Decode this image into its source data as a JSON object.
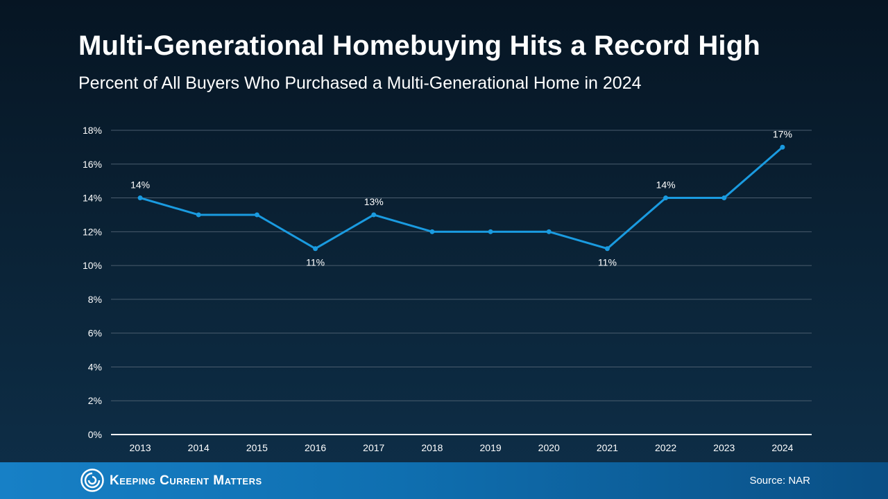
{
  "chart_data": {
    "type": "line",
    "title": "Multi-Generational Homebuying Hits a Record High",
    "subtitle": "Percent of All Buyers Who Purchased a Multi-Generational Home in 2024",
    "x": [
      "2013",
      "2014",
      "2015",
      "2016",
      "2017",
      "2018",
      "2019",
      "2020",
      "2021",
      "2022",
      "2023",
      "2024"
    ],
    "series": [
      {
        "values": [
          14,
          13,
          13,
          11,
          13,
          12,
          12,
          12,
          11,
          14,
          14,
          17
        ]
      }
    ],
    "data_labels": [
      {
        "x": "2013",
        "text": "14%"
      },
      {
        "x": "2016",
        "text": "11%"
      },
      {
        "x": "2017",
        "text": "13%"
      },
      {
        "x": "2021",
        "text": "11%"
      },
      {
        "x": "2022",
        "text": "14%"
      },
      {
        "x": "2024",
        "text": "17%"
      }
    ],
    "y_ticks": [
      "0%",
      "2%",
      "4%",
      "6%",
      "8%",
      "10%",
      "12%",
      "14%",
      "16%",
      "18%"
    ],
    "ylim": [
      0,
      18
    ],
    "grid": true,
    "line_color": "#1a9be0"
  },
  "footer": {
    "logo_text": "Keeping Current Matters",
    "source": "Source: NAR"
  }
}
